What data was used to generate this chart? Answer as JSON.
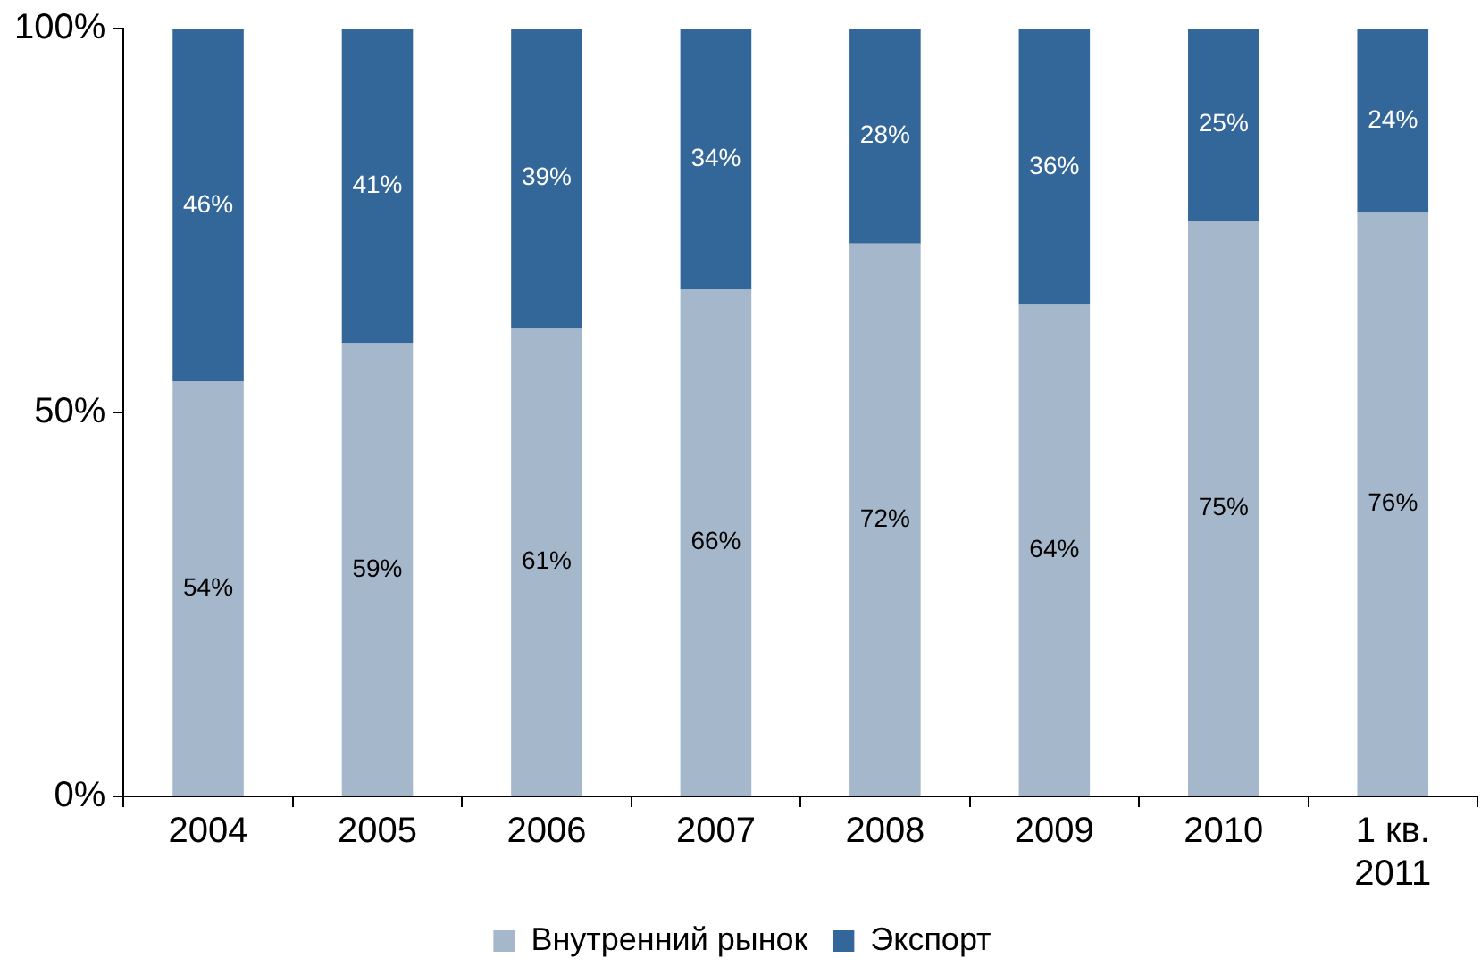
{
  "chart_data": {
    "type": "bar",
    "stacked": true,
    "categories": [
      "2004",
      "2005",
      "2006",
      "2007",
      "2008",
      "2009",
      "2010",
      "1 кв. 2011"
    ],
    "series": [
      {
        "name": "Внутренний рынок",
        "color": "#a5b7ca",
        "values": [
          54,
          59,
          61,
          66,
          72,
          64,
          75,
          76
        ],
        "value_labels": [
          "54%",
          "59%",
          "61%",
          "66%",
          "72%",
          "64%",
          "75%",
          "76%"
        ]
      },
      {
        "name": "Экспорт",
        "color": "#336699",
        "values": [
          46,
          41,
          39,
          34,
          28,
          36,
          25,
          24
        ],
        "value_labels": [
          "46%",
          "41%",
          "39%",
          "34%",
          "28%",
          "36%",
          "25%",
          "24%"
        ]
      }
    ],
    "ylim": [
      0,
      100
    ],
    "yticks": [
      {
        "value": 0,
        "label": "0%"
      },
      {
        "value": 50,
        "label": "50%"
      },
      {
        "value": 100,
        "label": "100%"
      }
    ],
    "grid": false,
    "legend": "bottom"
  }
}
